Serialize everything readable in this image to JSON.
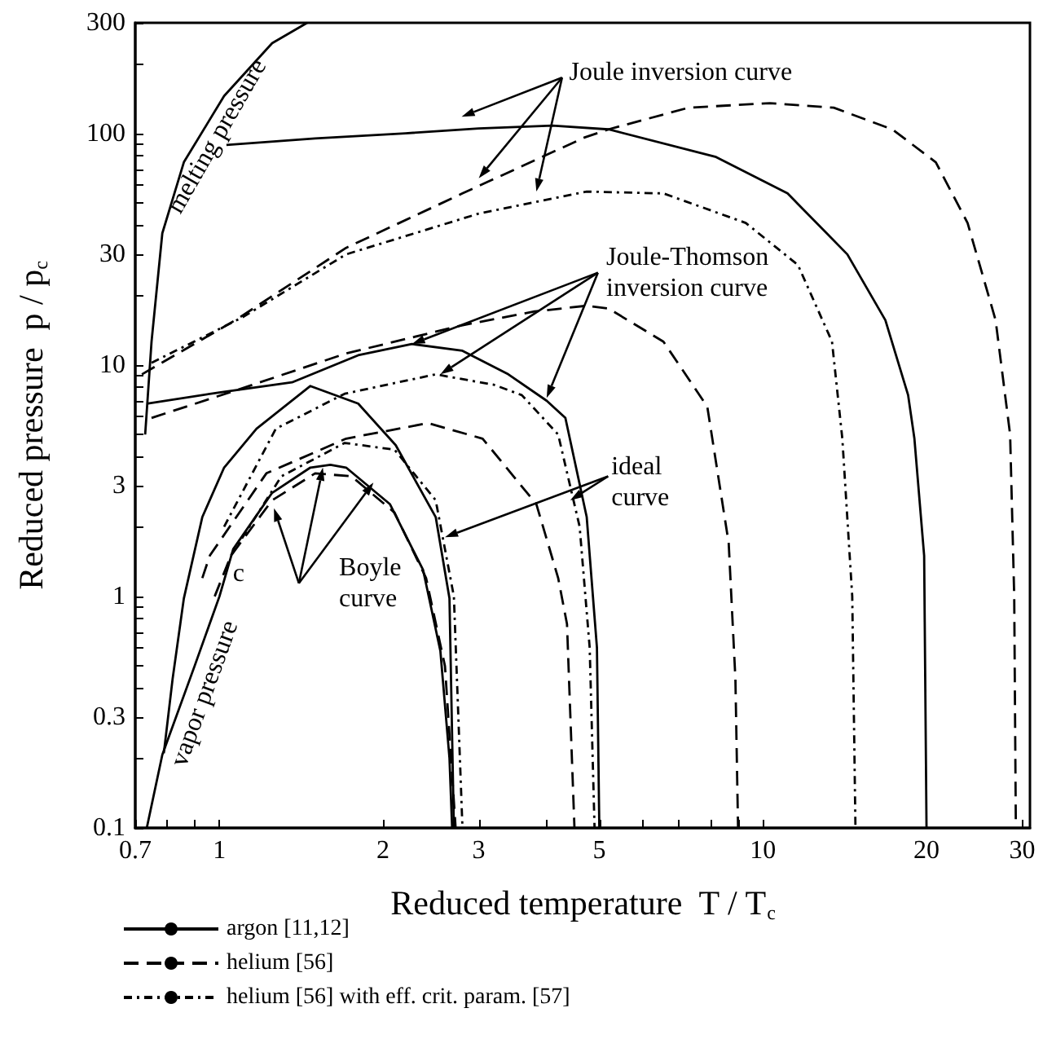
{
  "chart_data": {
    "type": "line",
    "xlabel": "Reduced temperature  T / T$_{c}$",
    "ylabel": "Reduced pressure  p / p$_{c}$",
    "log": "xy",
    "grid": false,
    "legend": "bottom",
    "marker": "none",
    "xlim": [
      0.7,
      31
    ],
    "xticks": [
      0.7,
      {
        "value": 0.8,
        "label": null
      },
      {
        "value": 0.9,
        "label": null
      },
      1,
      2,
      3,
      {
        "value": 4,
        "label": null
      },
      5,
      {
        "value": 6,
        "label": null
      },
      {
        "value": 7,
        "label": null
      },
      {
        "value": 8,
        "label": null
      },
      {
        "value": 9,
        "label": null
      },
      10,
      20,
      30
    ],
    "ylim": [
      0.1,
      300
    ],
    "yticks": [
      0.1,
      {
        "value": 0.2,
        "label": null
      },
      0.3,
      {
        "value": 0.4,
        "label": null
      },
      {
        "value": 0.5,
        "label": null
      },
      {
        "value": 0.6,
        "label": null
      },
      {
        "value": 0.7,
        "label": null
      },
      {
        "value": 0.8,
        "label": null
      },
      {
        "value": 0.9,
        "label": null
      },
      1,
      {
        "value": 2,
        "label": null
      },
      3,
      {
        "value": 4,
        "label": null
      },
      {
        "value": 5,
        "label": null
      },
      {
        "value": 6,
        "label": null
      },
      {
        "value": 7,
        "label": null
      },
      {
        "value": 8,
        "label": null
      },
      {
        "value": 9,
        "label": null
      },
      10,
      {
        "value": 20,
        "label": null
      },
      30,
      {
        "value": 40,
        "label": null
      },
      {
        "value": 50,
        "label": null
      },
      {
        "value": 60,
        "label": null
      },
      {
        "value": 70,
        "label": null
      },
      {
        "value": 80,
        "label": null
      },
      {
        "value": 90,
        "label": null
      },
      100,
      {
        "value": 200,
        "label": null
      },
      300
    ],
    "series": [
      {
        "name": "argon [11,12]",
        "color": "#000000",
        "line_style": "solid",
        "x": [
          1.03,
          1.5,
          2.2,
          3.0,
          4.1,
          5.2,
          8.2,
          11.1,
          14.3,
          16.8,
          18.5,
          19,
          19.8,
          20
        ],
        "values": [
          89,
          95,
          100,
          105,
          108,
          104,
          79,
          55,
          30,
          15.6,
          7.4,
          4.8,
          1.5,
          0.1
        ]
      },
      {
        "color": "#000000",
        "line_style": "solid",
        "x": [
          0.735,
          1.0,
          1.36,
          1.8,
          2.26,
          2.8,
          3.4,
          4.0,
          4.33,
          4.74,
          4.95,
          5.0
        ],
        "values": [
          6.8,
          7.6,
          8.4,
          11,
          12.3,
          11.5,
          9.1,
          7,
          5.9,
          2.2,
          0.6,
          0.1
        ]
      },
      {
        "color": "#000000",
        "line_style": "solid",
        "x": [
          0.79,
          0.82,
          0.86,
          0.93,
          1.02,
          1.17,
          1.47,
          1.8,
          2.11,
          2.5,
          2.65,
          2.7
        ],
        "values": [
          0.21,
          0.44,
          0.98,
          2.2,
          3.6,
          5.3,
          8.1,
          6.8,
          4.5,
          2.2,
          0.98,
          0.1
        ]
      },
      {
        "color": "#000000",
        "line_style": "solid",
        "x": [
          0.735,
          0.785,
          0.9,
          1.0,
          1.06,
          1.25,
          1.47,
          1.6,
          1.71,
          2.06,
          2.37,
          2.55,
          2.65,
          2.68
        ],
        "values": [
          0.1,
          0.207,
          0.5,
          1.0,
          1.6,
          2.8,
          3.6,
          3.7,
          3.6,
          2.5,
          1.3,
          0.58,
          0.2,
          0.1
        ]
      },
      {
        "color": "#000000",
        "line_style": "solid",
        "x": [
          0.73,
          0.75,
          0.785,
          0.86,
          1.02,
          1.25,
          1.45
        ],
        "values": [
          5.0,
          12.6,
          37,
          75,
          145,
          245,
          300
        ]
      },
      {
        "name": "helium [56]",
        "color": "#000000",
        "line_style": "dashed",
        "x": [
          0.72,
          1.07,
          1.71,
          2.8,
          4.7,
          5.2,
          7.3,
          10.3,
          13.5,
          17.3,
          20.8,
          23.8,
          26.8,
          28.5,
          29,
          29.2
        ],
        "values": [
          9.1,
          15.6,
          32,
          55,
          96,
          104,
          129,
          135,
          129,
          104,
          75,
          41,
          15.6,
          5,
          1,
          0.1
        ]
      },
      {
        "color": "#000000",
        "line_style": "dashed",
        "x": [
          0.75,
          1.08,
          1.71,
          2.79,
          3.8,
          4.74,
          5.2,
          6.56,
          7.9,
          8.65,
          8.9,
          9.0
        ],
        "values": [
          5.9,
          7.8,
          11.2,
          14.8,
          17,
          18,
          17.5,
          12.6,
          6.6,
          1.7,
          0.44,
          0.1
        ]
      },
      {
        "color": "#000000",
        "line_style": "dashed",
        "x": [
          0.93,
          0.96,
          1.22,
          1.71,
          2.42,
          3.05,
          3.83,
          4.2,
          4.36,
          4.5
        ],
        "values": [
          1.2,
          1.5,
          3.4,
          4.8,
          5.6,
          4.8,
          2.5,
          1.2,
          0.76,
          0.1
        ]
      },
      {
        "color": "#000000",
        "line_style": "dashed",
        "x": [
          0.98,
          1.05,
          1.25,
          1.5,
          1.75,
          2.1,
          2.4,
          2.6,
          2.72
        ],
        "values": [
          1.0,
          1.5,
          2.6,
          3.4,
          3.3,
          2.3,
          1.2,
          0.5,
          0.1
        ]
      },
      {
        "name": "helium [56] with eff. crit. param. [57]",
        "color": "#000000",
        "line_style": "dotted",
        "x": [
          0.75,
          1.1,
          1.71,
          3.0,
          4.74,
          6.56,
          9.3,
          11.6,
          13.4,
          14.0,
          14.6,
          14.8
        ],
        "values": [
          10.2,
          16,
          30,
          45,
          56,
          55,
          41,
          27,
          12.6,
          4.8,
          1,
          0.1
        ]
      },
      {
        "color": "#000000",
        "line_style": "dotted",
        "x": [
          1.02,
          1.27,
          1.7,
          2.5,
          3.2,
          3.6,
          4.2,
          4.6,
          4.8,
          4.9
        ],
        "values": [
          2.0,
          5.3,
          7.5,
          9.1,
          8.2,
          7.4,
          5,
          2,
          0.6,
          0.1
        ]
      },
      {
        "color": "#000000",
        "line_style": "dotted",
        "x": [
          1.05,
          1.3,
          1.7,
          2.1,
          2.5,
          2.7,
          2.8
        ],
        "values": [
          1.5,
          3.3,
          4.6,
          4.3,
          2.6,
          1.0,
          0.1
        ]
      }
    ],
    "annotations": [
      "Joule inversion curve",
      {
        "text": "Joule-Thomson\ninversion curve",
        "x": 2.26,
        "y": 12.3
      },
      "ideal\ncurve",
      "Boyle\ncurve",
      "melting pressure",
      "vapor pressure",
      "c"
    ]
  }
}
